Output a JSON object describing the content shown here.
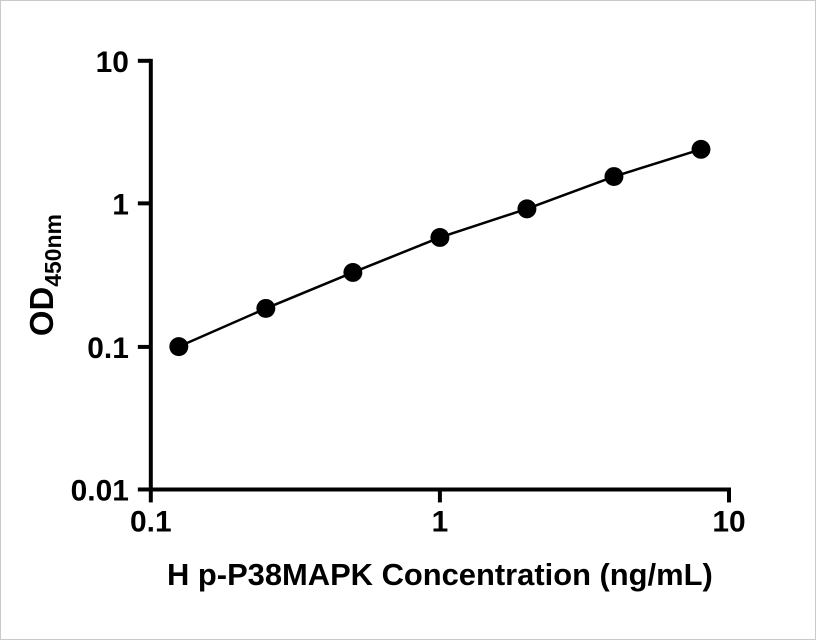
{
  "figure": {
    "background": "#ffffff",
    "border_color": "#c9c9c9"
  },
  "chart_data": {
    "type": "scatter",
    "title": "",
    "xlabel": "H p-P38MAPK Concentration (ng/mL)",
    "ylabel": "OD450nm",
    "ylabel_main": "OD",
    "ylabel_sub": "450nm",
    "xscale": "log",
    "yscale": "log",
    "xlim": [
      0.1,
      10
    ],
    "ylim": [
      0.01,
      10
    ],
    "x": [
      0.125,
      0.25,
      0.5,
      1,
      2,
      4,
      8
    ],
    "y": [
      0.1,
      0.185,
      0.33,
      0.58,
      0.92,
      1.55,
      2.4
    ],
    "x_ticks": [
      0.1,
      1,
      10
    ],
    "y_ticks": [
      0.01,
      0.1,
      1,
      10
    ],
    "x_tick_labels": [
      "0.1",
      "1",
      "10"
    ],
    "y_tick_labels": [
      "0.01",
      "0.1",
      "1",
      "10"
    ],
    "grid": false,
    "legend": "none",
    "marker": "circle",
    "line_between_points": true,
    "colors": {
      "point": "#000000",
      "line": "#000000",
      "axis": "#000000",
      "text": "#000000"
    }
  }
}
